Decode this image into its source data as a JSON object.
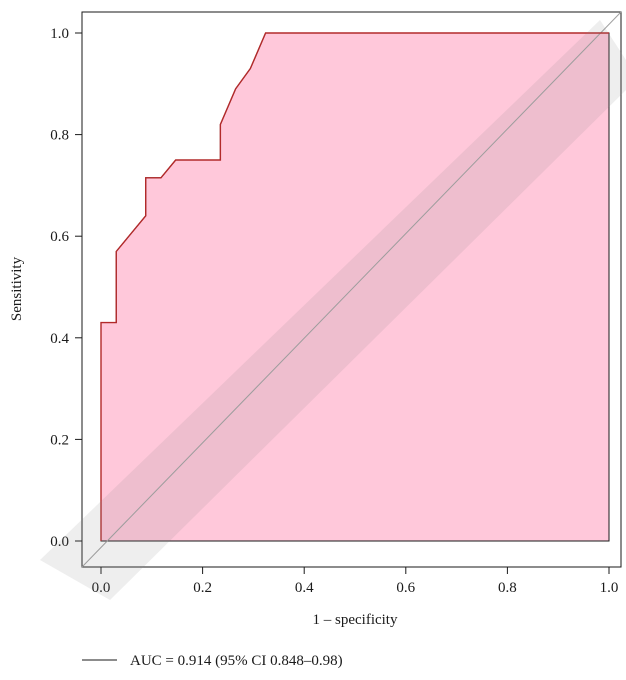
{
  "chart_data": {
    "type": "line",
    "title": "",
    "xlabel": "1 – specificity",
    "ylabel": "Sensitivity",
    "xlim": [
      0,
      1
    ],
    "ylim": [
      0,
      1
    ],
    "x_ticks": [
      0.0,
      0.2,
      0.4,
      0.6,
      0.8,
      1.0
    ],
    "y_ticks": [
      0.0,
      0.2,
      0.4,
      0.6,
      0.8,
      1.0
    ],
    "x_tick_labels": [
      "0.0",
      "0.2",
      "0.4",
      "0.6",
      "0.8",
      "1.0"
    ],
    "y_tick_labels": [
      "0.0",
      "0.2",
      "0.4",
      "0.6",
      "0.8",
      "1.0"
    ],
    "grid": false,
    "series": [
      {
        "name": "AUC = 0.914 (95% CI 0.848–0.98)",
        "x": [
          0.0,
          0.0,
          0.03,
          0.03,
          0.088,
          0.088,
          0.118,
          0.147,
          0.235,
          0.235,
          0.265,
          0.294,
          0.324,
          1.0
        ],
        "y": [
          0.0,
          0.43,
          0.43,
          0.57,
          0.64,
          0.715,
          0.715,
          0.75,
          0.75,
          0.82,
          0.89,
          0.93,
          1.0,
          1.0
        ],
        "line_color": "#b22a2a",
        "fill_color": "#ffc8da"
      }
    ],
    "reference_line": {
      "x": [
        0,
        1
      ],
      "y": [
        0,
        1
      ],
      "color": "#a0a0a0"
    },
    "legend": {
      "position": "bottom-left",
      "entries": [
        "AUC = 0.914 (95% CI 0.848–0.98)"
      ]
    }
  }
}
